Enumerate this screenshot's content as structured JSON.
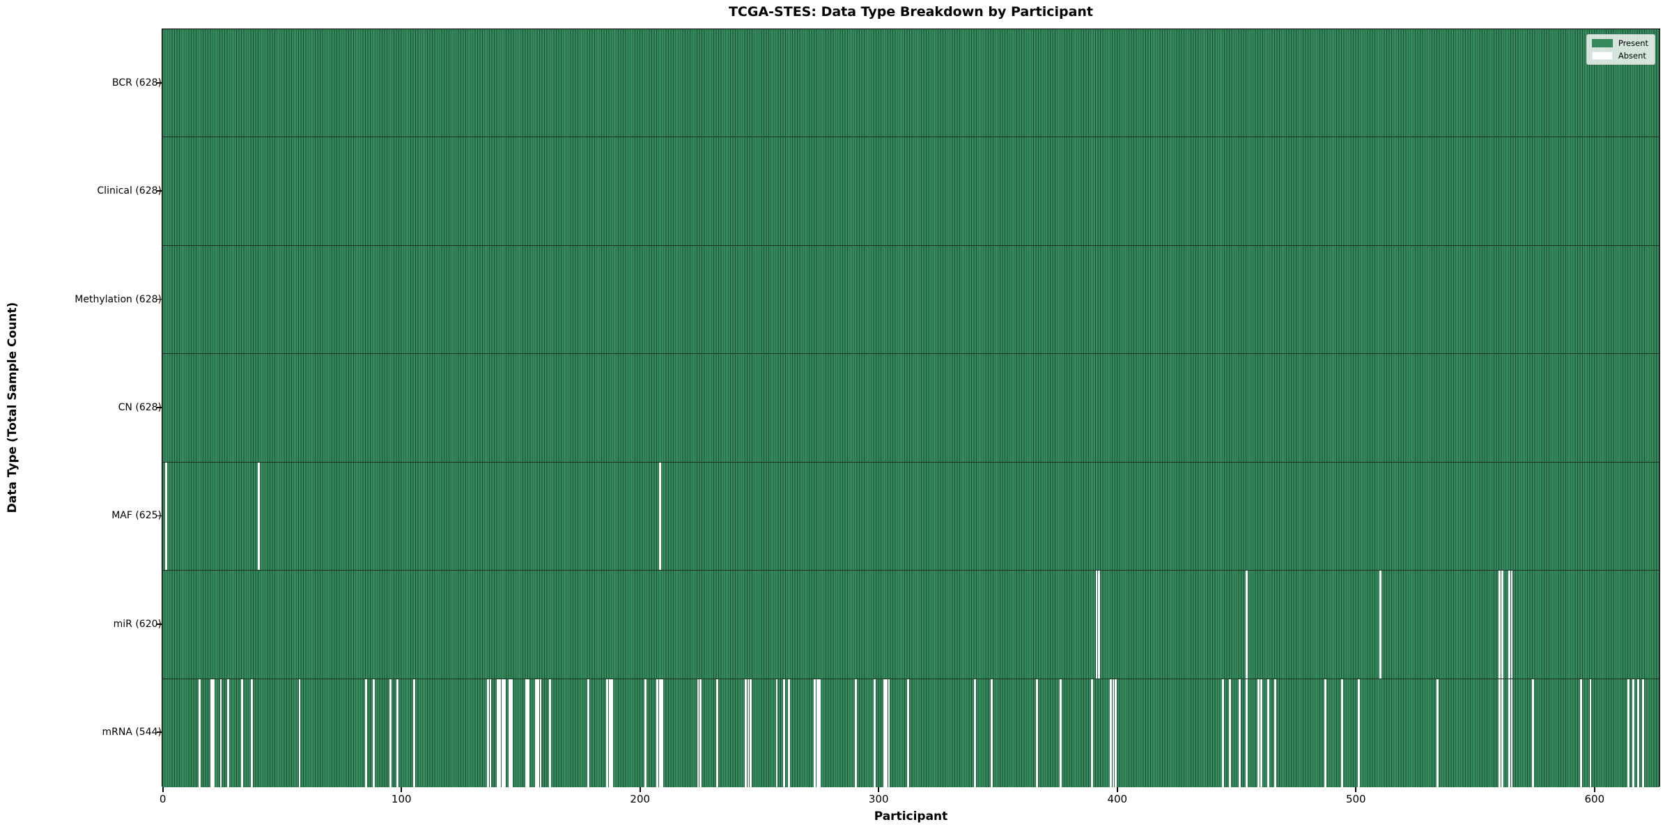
{
  "chart_data": {
    "type": "heatmap",
    "title": "TCGA-STES: Data Type Breakdown by Participant",
    "xlabel": "Participant",
    "ylabel": "Data Type (Total Sample Count)",
    "n_participants": 628,
    "x_ticks": [
      0,
      100,
      200,
      300,
      400,
      500,
      600
    ],
    "legend": [
      {
        "label": "Present",
        "color": "#35895c"
      },
      {
        "label": "Absent",
        "color": "#ffffff"
      }
    ],
    "legend_position": "upper right",
    "grid": false,
    "colors": {
      "present_fill": "#35895c",
      "bar_edge": "#1c4e33",
      "absent_fill": "#ffffff",
      "row_separator": "#17301f"
    },
    "rows": [
      {
        "label": "BCR (628)",
        "name": "BCR",
        "present_count": 628,
        "absent_indices": []
      },
      {
        "label": "Clinical (628)",
        "name": "Clinical",
        "present_count": 628,
        "absent_indices": []
      },
      {
        "label": "Methylation (628)",
        "name": "Methylation",
        "present_count": 628,
        "absent_indices": []
      },
      {
        "label": "CN (628)",
        "name": "CN",
        "present_count": 628,
        "absent_indices": []
      },
      {
        "label": "MAF (625)",
        "name": "MAF",
        "present_count": 625,
        "absent_indices": [
          1,
          40,
          208
        ]
      },
      {
        "label": "miR (620)",
        "name": "miR",
        "present_count": 620,
        "absent_indices": [
          391,
          392,
          454,
          510,
          560,
          561,
          564,
          565
        ]
      },
      {
        "label": "mRNA (544)",
        "name": "mRNA",
        "present_count": 544,
        "absent_indices": [
          15,
          20,
          21,
          24,
          27,
          33,
          37,
          57,
          85,
          88,
          95,
          98,
          105,
          136,
          137,
          140,
          141,
          142,
          143,
          145,
          146,
          152,
          153,
          156,
          157,
          158,
          162,
          178,
          186,
          187,
          188,
          202,
          207,
          208,
          209,
          224,
          225,
          232,
          244,
          245,
          246,
          257,
          260,
          262,
          273,
          274,
          275,
          290,
          298,
          302,
          303,
          304,
          312,
          340,
          347,
          366,
          376,
          389,
          397,
          398,
          399,
          444,
          447,
          451,
          454,
          459,
          460,
          463,
          466,
          487,
          494,
          501,
          534,
          560,
          561,
          564,
          565,
          574,
          594,
          598,
          614,
          616,
          618,
          620
        ]
      }
    ]
  }
}
